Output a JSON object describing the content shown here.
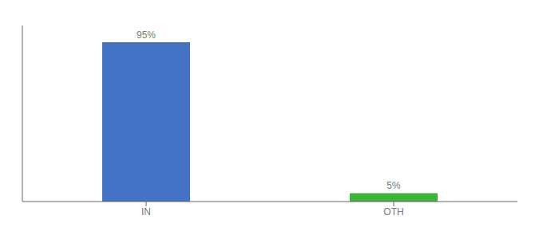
{
  "chart_data": {
    "type": "bar",
    "categories": [
      "IN",
      "OTH"
    ],
    "values": [
      95,
      5
    ],
    "colors": [
      "#4472c4",
      "#3cb43c"
    ],
    "value_labels": [
      "95%",
      "5%"
    ],
    "data_labels": true,
    "ylim": [
      0,
      105
    ],
    "tick_labels": "x",
    "grid": false
  }
}
